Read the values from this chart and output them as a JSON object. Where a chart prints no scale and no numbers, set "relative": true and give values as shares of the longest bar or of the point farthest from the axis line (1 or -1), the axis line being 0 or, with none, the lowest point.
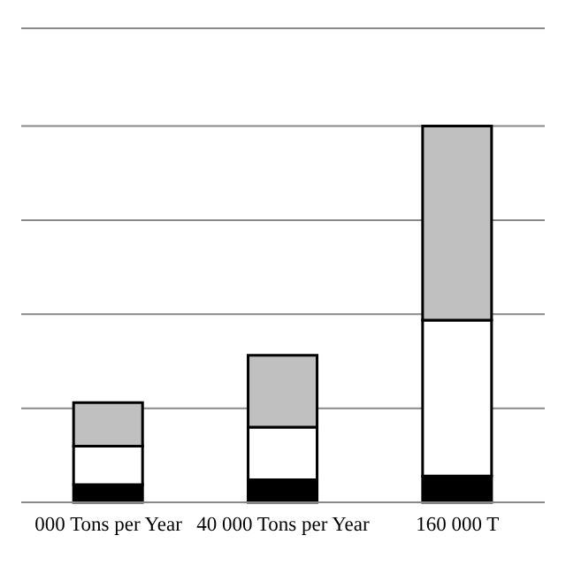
{
  "chart_data": {
    "type": "bar",
    "stacked": true,
    "relative": true,
    "grid": "y",
    "categories": [
      "000 Tons per Year",
      "40 000 Tons per Year",
      "160 000 T"
    ],
    "series": [
      {
        "color": "#000000",
        "values": [
          0.047,
          0.06,
          0.07
        ]
      },
      {
        "color": "#ffffff",
        "values": [
          0.102,
          0.14,
          0.414
        ]
      },
      {
        "color": "#c0c0c0",
        "values": [
          0.116,
          0.191,
          0.516
        ]
      }
    ]
  }
}
